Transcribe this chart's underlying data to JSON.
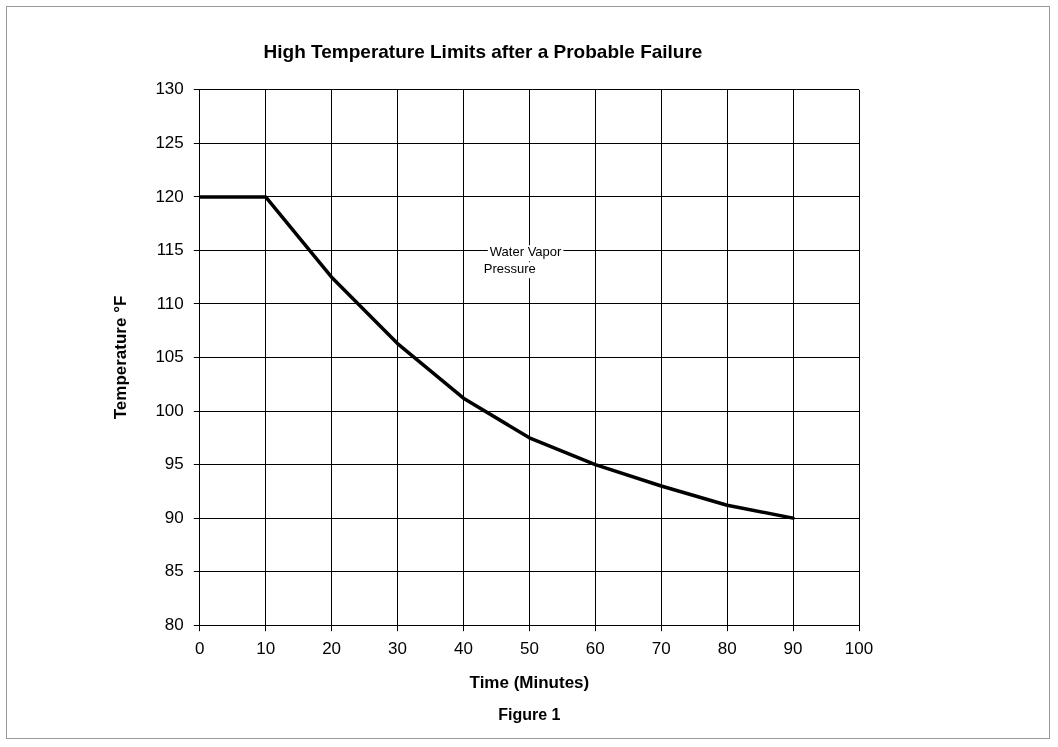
{
  "chart_data": {
    "type": "line",
    "title": "High Temperature Limits after a Probable Failure",
    "xlabel": "Time (Minutes)",
    "ylabel": "Temperature °F",
    "x": [
      0,
      10,
      20,
      30,
      40,
      50,
      60,
      70,
      80,
      90
    ],
    "series": [
      {
        "color": "#000000",
        "values": [
          120,
          120,
          112.5,
          106.3,
          101.2,
          97.5,
          95,
          93,
          91.2,
          90
        ]
      }
    ],
    "xlim": [
      0,
      100
    ],
    "xticks": [
      0,
      10,
      20,
      30,
      40,
      50,
      60,
      70,
      80,
      90,
      100
    ],
    "ylim": [
      80,
      130
    ],
    "yticks": [
      80,
      85,
      90,
      95,
      100,
      105,
      110,
      115,
      120,
      125,
      130
    ],
    "grid": true,
    "legend": false,
    "marker": "none",
    "line_style": "solid",
    "annotations": [
      "Water Vapor Pressure",
      "Figure 1"
    ]
  }
}
